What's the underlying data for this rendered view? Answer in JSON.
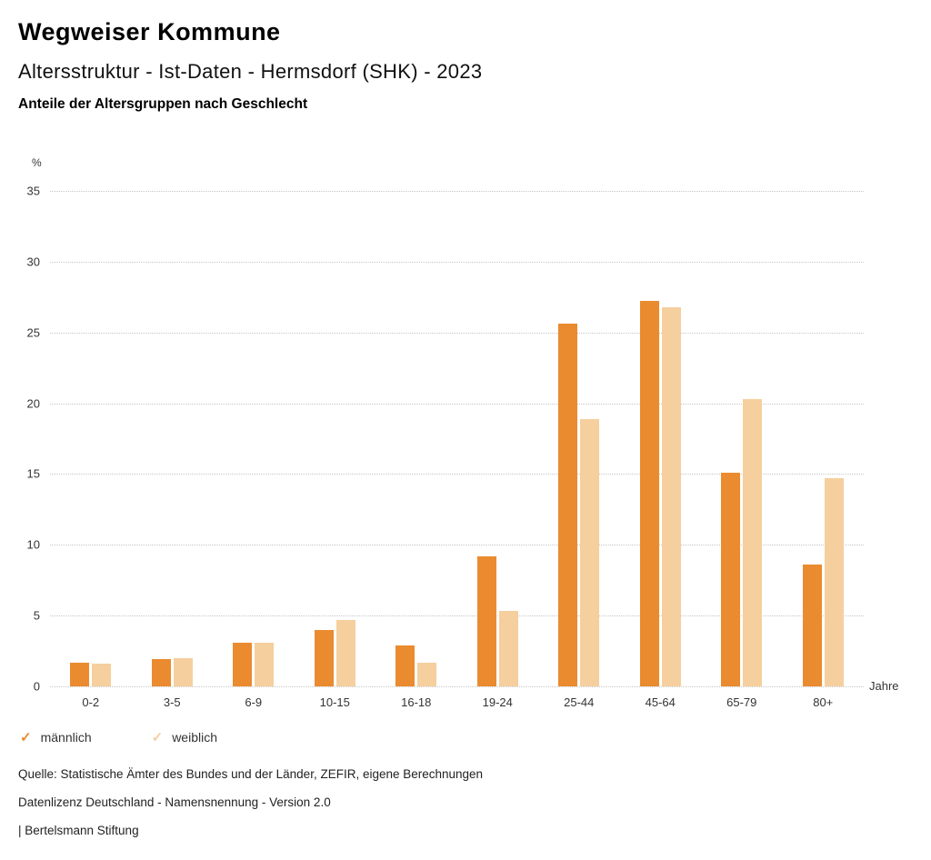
{
  "header": {
    "title": "Wegweiser Kommune",
    "subtitle": "Altersstruktur - Ist-Daten - Hermsdorf (SHK) - 2023",
    "subsubtitle": "Anteile der Altersgruppen nach Geschlecht"
  },
  "chart_data": {
    "type": "bar",
    "title": "Anteile der Altersgruppen nach Geschlecht",
    "categories": [
      "0-2",
      "3-5",
      "6-9",
      "10-15",
      "16-18",
      "19-24",
      "25-44",
      "45-64",
      "65-79",
      "80+"
    ],
    "series": [
      {
        "name": "männlich",
        "color": "#EA8B2F",
        "values": [
          1.7,
          1.9,
          3.1,
          4.0,
          2.9,
          9.2,
          25.6,
          27.2,
          15.1,
          8.6
        ]
      },
      {
        "name": "weiblich",
        "color": "#F6CF9E",
        "values": [
          1.6,
          2.0,
          3.1,
          4.7,
          1.7,
          5.3,
          18.9,
          26.8,
          20.3,
          14.7
        ]
      }
    ],
    "xlabel": "Jahre",
    "ylabel": "%",
    "ylim": [
      0,
      35
    ],
    "yticks": [
      0,
      5,
      10,
      15,
      20,
      25,
      30,
      35
    ],
    "grid": true,
    "legend_position": "bottom",
    "legend_check_glyph": "✓"
  },
  "footer": {
    "source": "Quelle: Statistische Ämter des Bundes und der Länder, ZEFIR, eigene Berechnungen",
    "license": "Datenlizenz Deutschland - Namensnennung - Version 2.0",
    "brand": "| Bertelsmann Stiftung"
  }
}
